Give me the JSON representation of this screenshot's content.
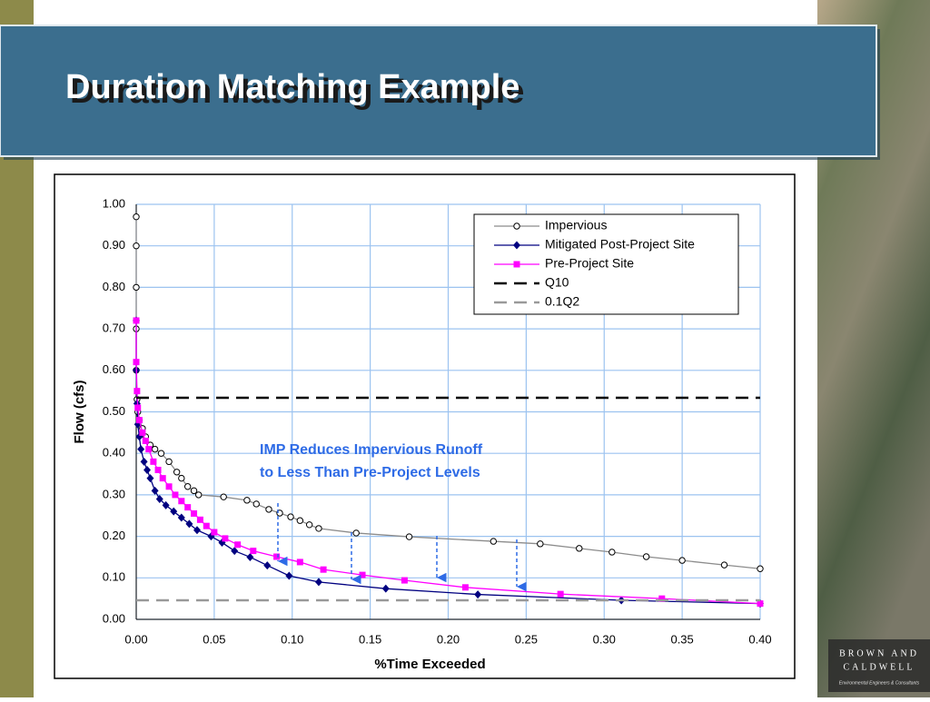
{
  "slide": {
    "title": "Duration Matching Example",
    "logo": [
      "BROWN AND",
      "CALDWELL"
    ],
    "logo_tagline": "Environmental Engineers & Consultants"
  },
  "chart_data": {
    "type": "line",
    "xlabel": "%Time Exceeded",
    "ylabel": "Flow (cfs)",
    "annotation": [
      "IMP Reduces Impervious Runoff",
      "to Less Than Pre-Project Levels"
    ],
    "xlim": [
      0,
      0.4
    ],
    "ylim": [
      0,
      1
    ],
    "xticks": [
      {
        "value": 0,
        "label": "0.00"
      },
      {
        "value": 0.05,
        "label": "0.05"
      },
      {
        "value": 0.1,
        "label": "0.10"
      },
      {
        "value": 0.15,
        "label": "0.15"
      },
      {
        "value": 0.2,
        "label": "0.20"
      },
      {
        "value": 0.25,
        "label": "0.25"
      },
      {
        "value": 0.3,
        "label": "0.30"
      },
      {
        "value": 0.35,
        "label": "0.35"
      },
      {
        "value": 0.4,
        "label": "0.40"
      }
    ],
    "yticks": [
      {
        "value": 0,
        "label": "0.00"
      },
      {
        "value": 0.1,
        "label": "0.10"
      },
      {
        "value": 0.2,
        "label": "0.20"
      },
      {
        "value": 0.3,
        "label": "0.30"
      },
      {
        "value": 0.4,
        "label": "0.40"
      },
      {
        "value": 0.5,
        "label": "0.50"
      },
      {
        "value": 0.6,
        "label": "0.60"
      },
      {
        "value": 0.7,
        "label": "0.70"
      },
      {
        "value": 0.8,
        "label": "0.80"
      },
      {
        "value": 0.9,
        "label": "0.90"
      },
      {
        "value": 1,
        "label": "1.00"
      }
    ],
    "grid": true,
    "legend": "upper right",
    "series": [
      {
        "name": "Impervious",
        "color": "#8c8c8c",
        "marker": "circle",
        "marker_color": "#000000",
        "x": [
          0,
          0,
          0,
          0,
          0,
          0.0005,
          0.001,
          0.002,
          0.004,
          0.006,
          0.009,
          0.012,
          0.016,
          0.021,
          0.026,
          0.029,
          0.033,
          0.037,
          0.04,
          0.056,
          0.071,
          0.077,
          0.085,
          0.092,
          0.099,
          0.105,
          0.111,
          0.117,
          0.141,
          0.175,
          0.229,
          0.259,
          0.284,
          0.305,
          0.327,
          0.35,
          0.377,
          0.4
        ],
        "values": [
          0.97,
          0.9,
          0.8,
          0.7,
          0.6,
          0.53,
          0.5,
          0.48,
          0.46,
          0.44,
          0.42,
          0.41,
          0.4,
          0.38,
          0.355,
          0.34,
          0.32,
          0.31,
          0.3,
          0.295,
          0.287,
          0.278,
          0.265,
          0.256,
          0.247,
          0.238,
          0.228,
          0.219,
          0.208,
          0.199,
          0.188,
          0.182,
          0.171,
          0.162,
          0.151,
          0.142,
          0.131,
          0.122
        ]
      },
      {
        "name": "Mitigated Post-Project Site",
        "color": "#000080",
        "marker": "diamond",
        "marker_color": "#000080",
        "x": [
          0,
          0,
          0.0005,
          0.001,
          0.002,
          0.003,
          0.005,
          0.007,
          0.009,
          0.012,
          0.015,
          0.019,
          0.024,
          0.029,
          0.034,
          0.039,
          0.048,
          0.055,
          0.063,
          0.073,
          0.084,
          0.098,
          0.117,
          0.16,
          0.219,
          0.311,
          0.4
        ],
        "values": [
          0.72,
          0.6,
          0.52,
          0.47,
          0.44,
          0.41,
          0.38,
          0.36,
          0.34,
          0.31,
          0.29,
          0.275,
          0.26,
          0.245,
          0.23,
          0.215,
          0.2,
          0.185,
          0.165,
          0.15,
          0.13,
          0.105,
          0.09,
          0.074,
          0.06,
          0.046,
          0.038
        ]
      },
      {
        "name": "Pre-Project Site",
        "color": "#ff00ff",
        "marker": "square",
        "marker_color": "#ff00ff",
        "x": [
          0,
          0,
          0.0005,
          0.001,
          0.002,
          0.004,
          0.006,
          0.008,
          0.011,
          0.014,
          0.017,
          0.021,
          0.025,
          0.029,
          0.033,
          0.037,
          0.041,
          0.045,
          0.05,
          0.057,
          0.065,
          0.075,
          0.09,
          0.105,
          0.12,
          0.145,
          0.172,
          0.211,
          0.272,
          0.337,
          0.4
        ],
        "values": [
          0.72,
          0.62,
          0.55,
          0.51,
          0.48,
          0.45,
          0.43,
          0.41,
          0.38,
          0.36,
          0.34,
          0.32,
          0.3,
          0.285,
          0.27,
          0.255,
          0.24,
          0.225,
          0.21,
          0.195,
          0.18,
          0.165,
          0.151,
          0.138,
          0.12,
          0.107,
          0.094,
          0.077,
          0.061,
          0.05,
          0.038
        ]
      },
      {
        "name": "Q10",
        "color": "#000000",
        "dash": true,
        "x": [
          0,
          0.4
        ],
        "values": [
          0.534,
          0.534
        ]
      },
      {
        "name": "0.1Q2",
        "color": "#999999",
        "dash": true,
        "x": [
          0,
          0.4
        ],
        "values": [
          0.046,
          0.046
        ]
      }
    ]
  }
}
